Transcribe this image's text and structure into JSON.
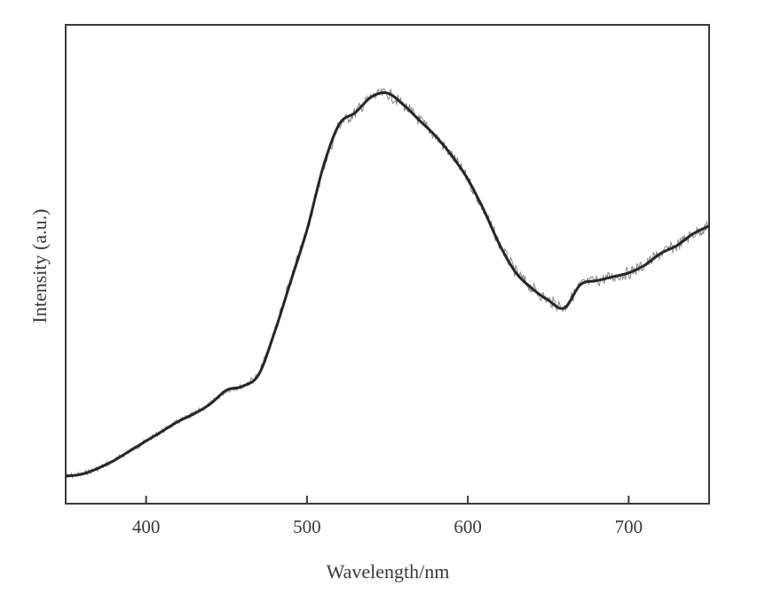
{
  "chart_data": {
    "type": "line",
    "xlabel": "Wavelength/nm",
    "ylabel": "Intensity (a.u.)",
    "xlim": [
      350,
      750
    ],
    "ylim": [
      0,
      1
    ],
    "xticks": [
      400,
      500,
      600,
      700
    ],
    "yticks_shown": false,
    "grid": false,
    "legend": "none",
    "line_color": "#262626",
    "series": [
      {
        "x": [
          350,
          360,
          370,
          380,
          390,
          400,
          410,
          420,
          430,
          440,
          450,
          460,
          470,
          480,
          490,
          500,
          510,
          520,
          530,
          540,
          550,
          560,
          570,
          580,
          590,
          600,
          610,
          620,
          630,
          640,
          650,
          660,
          670,
          680,
          690,
          700,
          710,
          720,
          730,
          740,
          750
        ],
        "y": [
          0.06,
          0.065,
          0.08,
          0.1,
          0.125,
          0.15,
          0.175,
          0.2,
          0.22,
          0.245,
          0.28,
          0.29,
          0.32,
          0.43,
          0.56,
          0.69,
          0.85,
          0.96,
          0.99,
          1.03,
          1.04,
          1.01,
          0.97,
          0.93,
          0.88,
          0.82,
          0.74,
          0.65,
          0.58,
          0.54,
          0.51,
          0.49,
          0.55,
          0.56,
          0.57,
          0.58,
          0.6,
          0.63,
          0.65,
          0.68,
          0.7
        ]
      }
    ]
  }
}
